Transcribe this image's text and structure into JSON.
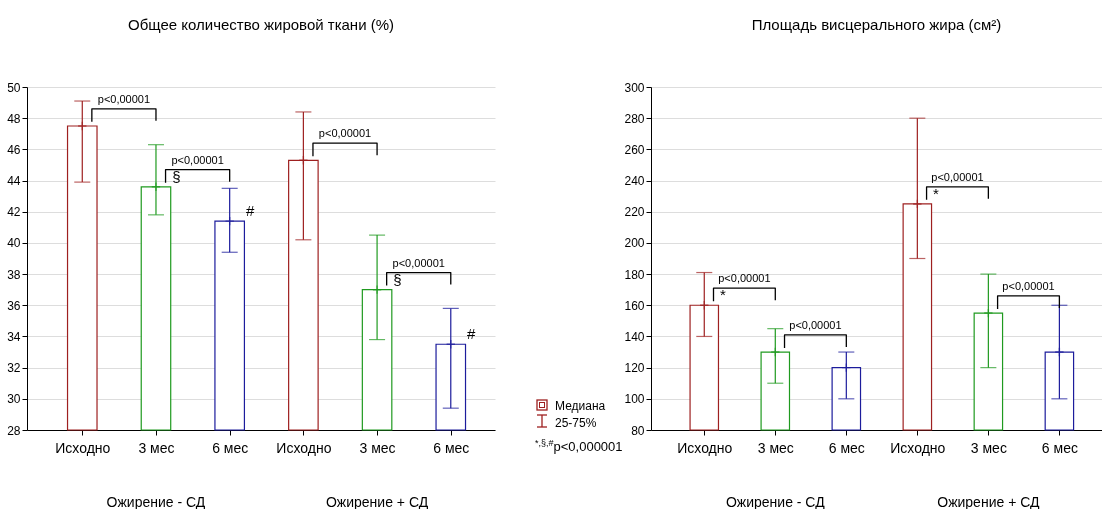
{
  "chart_data": [
    {
      "type": "bar",
      "title": "Общее количество жировой ткани (%)",
      "categories": [
        "Исходно",
        "3 мес",
        "6 мес",
        "Исходно",
        "3 мес",
        "6 мес"
      ],
      "values": [
        47.5,
        43.6,
        41.4,
        45.3,
        37.0,
        33.5
      ],
      "colors": [
        "#9e2020",
        "#1f9a1f",
        "#1c1c9c",
        "#9e2020",
        "#1f9a1f",
        "#1c1c9c"
      ],
      "errors": [
        [
          43.9,
          49.1
        ],
        [
          41.8,
          46.3
        ],
        [
          39.4,
          43.5
        ],
        [
          40.2,
          48.4
        ],
        [
          33.8,
          40.5
        ],
        [
          29.4,
          35.8
        ]
      ],
      "ylim": [
        28,
        50
      ],
      "yticks": [
        28,
        30,
        32,
        34,
        36,
        38,
        40,
        42,
        44,
        46,
        48,
        50
      ],
      "grid": "y",
      "annotations": [
        "p<0,00001",
        "p<0,00001",
        "p<0,00001",
        "p<0,00001",
        "§",
        "#",
        "§",
        "#",
        "Ожирение - СД",
        "Ожирение + СД",
        "Медиана",
        "25-75%",
        "$^{*,§,#}$p<0,000001"
      ]
    },
    {
      "type": "bar",
      "title": "Площадь висцерального жира (см²)",
      "categories": [
        "Исходно",
        "3 мес",
        "6 мес",
        "Исходно",
        "3 мес",
        "6 мес"
      ],
      "values": [
        160,
        130,
        120,
        225,
        155,
        130
      ],
      "colors": [
        "#9e2020",
        "#1f9a1f",
        "#1c1c9c",
        "#9e2020",
        "#1f9a1f",
        "#1c1c9c"
      ],
      "errors": [
        [
          140,
          181
        ],
        [
          110,
          145
        ],
        [
          100,
          130
        ],
        [
          190,
          280
        ],
        [
          120,
          180
        ],
        [
          100,
          160
        ]
      ],
      "ylim": [
        80,
        300
      ],
      "yticks": [
        80,
        100,
        120,
        140,
        160,
        180,
        200,
        220,
        240,
        260,
        280,
        300
      ],
      "grid": "y",
      "annotations": [
        "p<0,00001",
        "p<0,00001",
        "p<0,00001",
        "p<0,00001",
        "*",
        "*",
        "Ожирение - СД",
        "Ожирение + СД"
      ]
    }
  ]
}
